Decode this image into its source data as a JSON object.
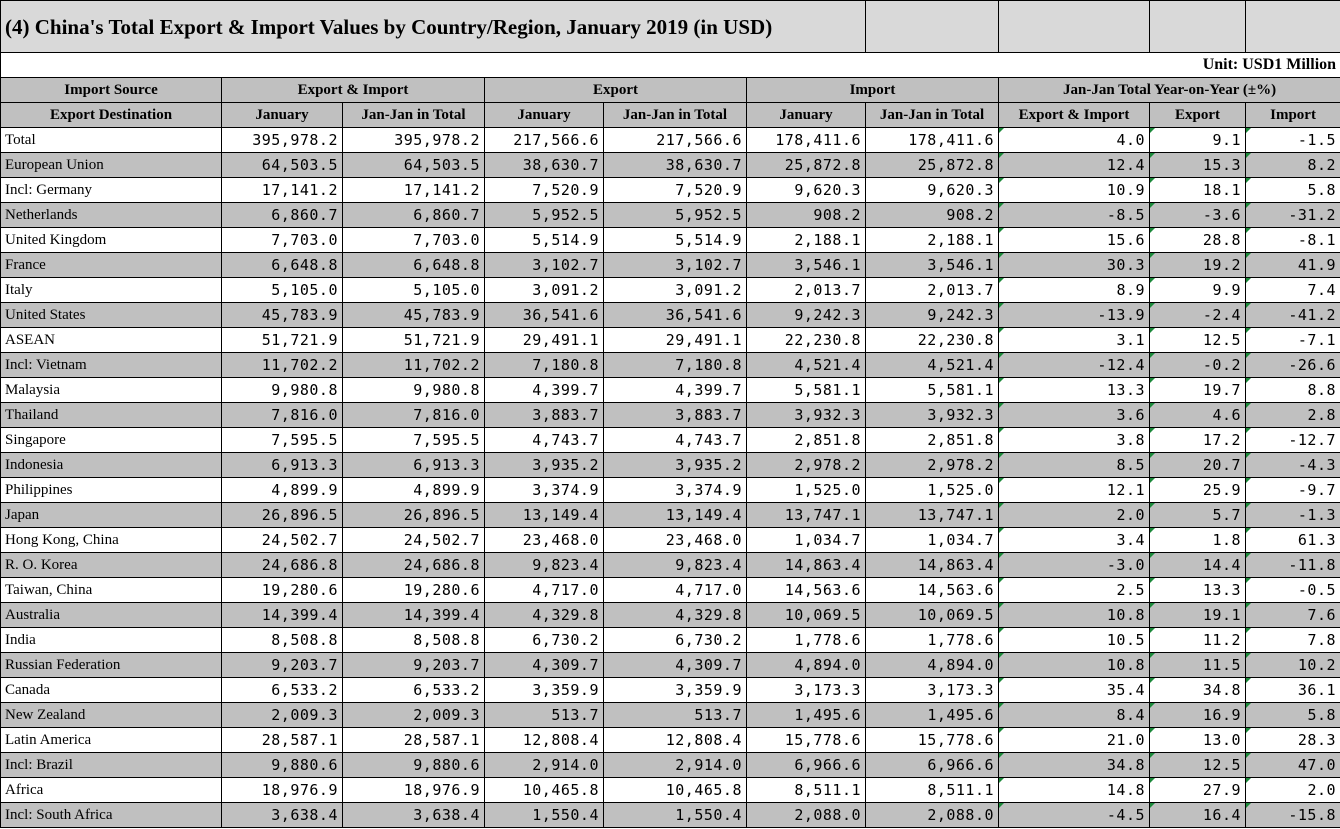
{
  "title": "(4) China's Total Export & Import Values by Country/Region, January 2019 (in USD)",
  "unit": "Unit: USD1 Million",
  "headers": {
    "import_source": "Import Source",
    "export_destination": "Export Destination",
    "export_import": "Export & Import",
    "export": "Export",
    "import": "Import",
    "yoy": "Jan-Jan Total Year-on-Year (±%)",
    "january": "January",
    "jan_jan_total": "Jan-Jan in Total",
    "yoy_export_import": "Export & Import",
    "yoy_export": "Export",
    "yoy_import": "Import"
  },
  "rows": [
    {
      "name": "Total",
      "level": 0,
      "ei_jan": "395,978.2",
      "ei_total": "395,978.2",
      "ex_jan": "217,566.6",
      "ex_total": "217,566.6",
      "im_jan": "178,411.6",
      "im_total": "178,411.6",
      "yoy_ei": "4.0",
      "yoy_ex": "9.1",
      "yoy_im": "-1.5"
    },
    {
      "name": "European Union",
      "level": 1,
      "ei_jan": "64,503.5",
      "ei_total": "64,503.5",
      "ex_jan": "38,630.7",
      "ex_total": "38,630.7",
      "im_jan": "25,872.8",
      "im_total": "25,872.8",
      "yoy_ei": "12.4",
      "yoy_ex": "15.3",
      "yoy_im": "8.2"
    },
    {
      "name": "Incl: Germany",
      "level": 2,
      "ei_jan": "17,141.2",
      "ei_total": "17,141.2",
      "ex_jan": "7,520.9",
      "ex_total": "7,520.9",
      "im_jan": "9,620.3",
      "im_total": "9,620.3",
      "yoy_ei": "10.9",
      "yoy_ex": "18.1",
      "yoy_im": "5.8"
    },
    {
      "name": "Netherlands",
      "level": 4,
      "ei_jan": "6,860.7",
      "ei_total": "6,860.7",
      "ex_jan": "5,952.5",
      "ex_total": "5,952.5",
      "im_jan": "908.2",
      "im_total": "908.2",
      "yoy_ei": "-8.5",
      "yoy_ex": "-3.6",
      "yoy_im": "-31.2"
    },
    {
      "name": "United Kingdom",
      "level": 3,
      "ei_jan": "7,703.0",
      "ei_total": "7,703.0",
      "ex_jan": "5,514.9",
      "ex_total": "5,514.9",
      "im_jan": "2,188.1",
      "im_total": "2,188.1",
      "yoy_ei": "15.6",
      "yoy_ex": "28.8",
      "yoy_im": "-8.1"
    },
    {
      "name": "France",
      "level": 3,
      "ei_jan": "6,648.8",
      "ei_total": "6,648.8",
      "ex_jan": "3,102.7",
      "ex_total": "3,102.7",
      "im_jan": "3,546.1",
      "im_total": "3,546.1",
      "yoy_ei": "30.3",
      "yoy_ex": "19.2",
      "yoy_im": "41.9"
    },
    {
      "name": "Italy",
      "level": 3,
      "ei_jan": "5,105.0",
      "ei_total": "5,105.0",
      "ex_jan": "3,091.2",
      "ex_total": "3,091.2",
      "im_jan": "2,013.7",
      "im_total": "2,013.7",
      "yoy_ei": "8.9",
      "yoy_ex": "9.9",
      "yoy_im": "7.4"
    },
    {
      "name": "United States",
      "level": 1,
      "ei_jan": "45,783.9",
      "ei_total": "45,783.9",
      "ex_jan": "36,541.6",
      "ex_total": "36,541.6",
      "im_jan": "9,242.3",
      "im_total": "9,242.3",
      "yoy_ei": "-13.9",
      "yoy_ex": "-2.4",
      "yoy_im": "-41.2"
    },
    {
      "name": "ASEAN",
      "level": 1,
      "ei_jan": "51,721.9",
      "ei_total": "51,721.9",
      "ex_jan": "29,491.1",
      "ex_total": "29,491.1",
      "im_jan": "22,230.8",
      "im_total": "22,230.8",
      "yoy_ei": "3.1",
      "yoy_ex": "12.5",
      "yoy_im": "-7.1"
    },
    {
      "name": "Incl: Vietnam",
      "level": 2,
      "ei_jan": "11,702.2",
      "ei_total": "11,702.2",
      "ex_jan": "7,180.8",
      "ex_total": "7,180.8",
      "im_jan": "4,521.4",
      "im_total": "4,521.4",
      "yoy_ei": "-12.4",
      "yoy_ex": "-0.2",
      "yoy_im": "-26.6"
    },
    {
      "name": "Malaysia",
      "level": 3,
      "ei_jan": "9,980.8",
      "ei_total": "9,980.8",
      "ex_jan": "4,399.7",
      "ex_total": "4,399.7",
      "im_jan": "5,581.1",
      "im_total": "5,581.1",
      "yoy_ei": "13.3",
      "yoy_ex": "19.7",
      "yoy_im": "8.8"
    },
    {
      "name": "Thailand",
      "level": 3,
      "ei_jan": "7,816.0",
      "ei_total": "7,816.0",
      "ex_jan": "3,883.7",
      "ex_total": "3,883.7",
      "im_jan": "3,932.3",
      "im_total": "3,932.3",
      "yoy_ei": "3.6",
      "yoy_ex": "4.6",
      "yoy_im": "2.8"
    },
    {
      "name": "Singapore",
      "level": 3,
      "ei_jan": "7,595.5",
      "ei_total": "7,595.5",
      "ex_jan": "4,743.7",
      "ex_total": "4,743.7",
      "im_jan": "2,851.8",
      "im_total": "2,851.8",
      "yoy_ei": "3.8",
      "yoy_ex": "17.2",
      "yoy_im": "-12.7"
    },
    {
      "name": "Indonesia",
      "level": 3,
      "ei_jan": "6,913.3",
      "ei_total": "6,913.3",
      "ex_jan": "3,935.2",
      "ex_total": "3,935.2",
      "im_jan": "2,978.2",
      "im_total": "2,978.2",
      "yoy_ei": "8.5",
      "yoy_ex": "20.7",
      "yoy_im": "-4.3"
    },
    {
      "name": "Philippines",
      "level": 3,
      "ei_jan": "4,899.9",
      "ei_total": "4,899.9",
      "ex_jan": "3,374.9",
      "ex_total": "3,374.9",
      "im_jan": "1,525.0",
      "im_total": "1,525.0",
      "yoy_ei": "12.1",
      "yoy_ex": "25.9",
      "yoy_im": "-9.7"
    },
    {
      "name": "Japan",
      "level": 1,
      "ei_jan": "26,896.5",
      "ei_total": "26,896.5",
      "ex_jan": "13,149.4",
      "ex_total": "13,149.4",
      "im_jan": "13,747.1",
      "im_total": "13,747.1",
      "yoy_ei": "2.0",
      "yoy_ex": "5.7",
      "yoy_im": "-1.3"
    },
    {
      "name": "Hong Kong, China",
      "level": 1,
      "ei_jan": "24,502.7",
      "ei_total": "24,502.7",
      "ex_jan": "23,468.0",
      "ex_total": "23,468.0",
      "im_jan": "1,034.7",
      "im_total": "1,034.7",
      "yoy_ei": "3.4",
      "yoy_ex": "1.8",
      "yoy_im": "61.3"
    },
    {
      "name": "R. O. Korea",
      "level": 1,
      "ei_jan": "24,686.8",
      "ei_total": "24,686.8",
      "ex_jan": "9,823.4",
      "ex_total": "9,823.4",
      "im_jan": "14,863.4",
      "im_total": "14,863.4",
      "yoy_ei": "-3.0",
      "yoy_ex": "14.4",
      "yoy_im": "-11.8"
    },
    {
      "name": "Taiwan, China",
      "level": 1,
      "ei_jan": "19,280.6",
      "ei_total": "19,280.6",
      "ex_jan": "4,717.0",
      "ex_total": "4,717.0",
      "im_jan": "14,563.6",
      "im_total": "14,563.6",
      "yoy_ei": "2.5",
      "yoy_ex": "13.3",
      "yoy_im": "-0.5"
    },
    {
      "name": "Australia",
      "level": 1,
      "ei_jan": "14,399.4",
      "ei_total": "14,399.4",
      "ex_jan": "4,329.8",
      "ex_total": "4,329.8",
      "im_jan": "10,069.5",
      "im_total": "10,069.5",
      "yoy_ei": "10.8",
      "yoy_ex": "19.1",
      "yoy_im": "7.6"
    },
    {
      "name": "India",
      "level": 1,
      "ei_jan": "8,508.8",
      "ei_total": "8,508.8",
      "ex_jan": "6,730.2",
      "ex_total": "6,730.2",
      "im_jan": "1,778.6",
      "im_total": "1,778.6",
      "yoy_ei": "10.5",
      "yoy_ex": "11.2",
      "yoy_im": "7.8"
    },
    {
      "name": "Russian Federation",
      "level": 1,
      "ei_jan": "9,203.7",
      "ei_total": "9,203.7",
      "ex_jan": "4,309.7",
      "ex_total": "4,309.7",
      "im_jan": "4,894.0",
      "im_total": "4,894.0",
      "yoy_ei": "10.8",
      "yoy_ex": "11.5",
      "yoy_im": "10.2"
    },
    {
      "name": "Canada",
      "level": 1,
      "ei_jan": "6,533.2",
      "ei_total": "6,533.2",
      "ex_jan": "3,359.9",
      "ex_total": "3,359.9",
      "im_jan": "3,173.3",
      "im_total": "3,173.3",
      "yoy_ei": "35.4",
      "yoy_ex": "34.8",
      "yoy_im": "36.1"
    },
    {
      "name": "New Zealand",
      "level": 1,
      "ei_jan": "2,009.3",
      "ei_total": "2,009.3",
      "ex_jan": "513.7",
      "ex_total": "513.7",
      "im_jan": "1,495.6",
      "im_total": "1,495.6",
      "yoy_ei": "8.4",
      "yoy_ex": "16.9",
      "yoy_im": "5.8"
    },
    {
      "name": "Latin America",
      "level": 1,
      "ei_jan": "28,587.1",
      "ei_total": "28,587.1",
      "ex_jan": "12,808.4",
      "ex_total": "12,808.4",
      "im_jan": "15,778.6",
      "im_total": "15,778.6",
      "yoy_ei": "21.0",
      "yoy_ex": "13.0",
      "yoy_im": "28.3"
    },
    {
      "name": "Incl: Brazil",
      "level": 2,
      "ei_jan": "9,880.6",
      "ei_total": "9,880.6",
      "ex_jan": "2,914.0",
      "ex_total": "2,914.0",
      "im_jan": "6,966.6",
      "im_total": "6,966.6",
      "yoy_ei": "34.8",
      "yoy_ex": "12.5",
      "yoy_im": "47.0"
    },
    {
      "name": "Africa",
      "level": 1,
      "ei_jan": "18,976.9",
      "ei_total": "18,976.9",
      "ex_jan": "10,465.8",
      "ex_total": "10,465.8",
      "im_jan": "8,511.1",
      "im_total": "8,511.1",
      "yoy_ei": "14.8",
      "yoy_ex": "27.9",
      "yoy_im": "2.0"
    },
    {
      "name": "Incl: South Africa",
      "level": 2,
      "ei_jan": "3,638.4",
      "ei_total": "3,638.4",
      "ex_jan": "1,550.4",
      "ex_total": "1,550.4",
      "im_jan": "2,088.0",
      "im_total": "2,088.0",
      "yoy_ei": "-4.5",
      "yoy_ex": "16.4",
      "yoy_im": "-15.8"
    }
  ]
}
